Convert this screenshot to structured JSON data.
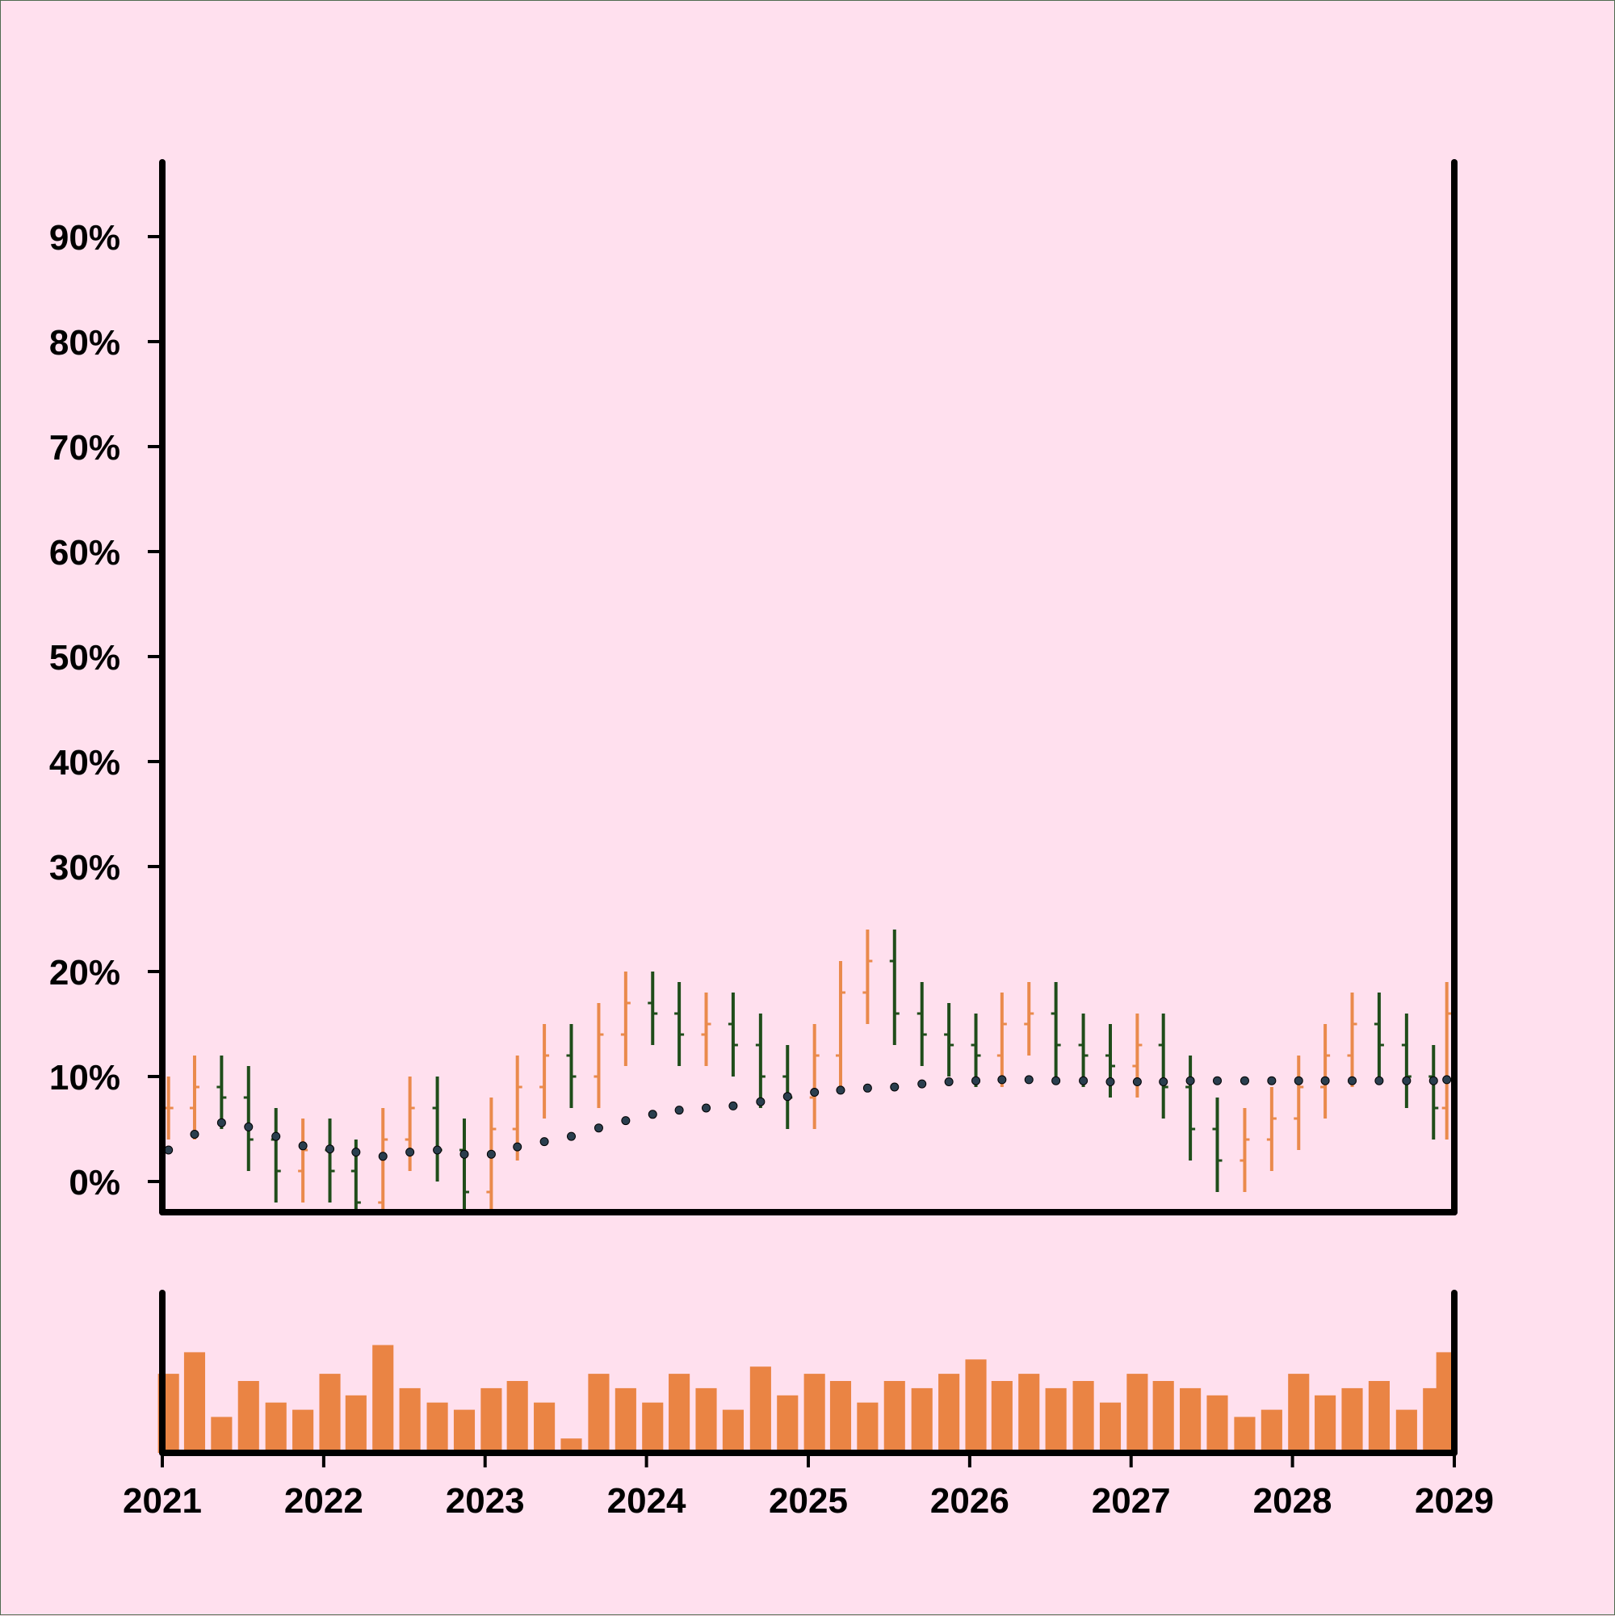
{
  "chart_data": {
    "type": "ohlc",
    "title": "",
    "xlabel": "",
    "ylabel": "",
    "x_ticks": [
      "2021",
      "2022",
      "2023",
      "2024",
      "2025",
      "2026",
      "2027",
      "2028",
      "2029"
    ],
    "y_ticks": [
      "0%",
      "10%",
      "20%",
      "30%",
      "40%",
      "50%",
      "60%",
      "70%",
      "80%",
      "90%"
    ],
    "ylim": [
      -3,
      97
    ],
    "xlim": [
      "2021-01-01",
      "2029-01-01"
    ],
    "grid": false,
    "legend": "none",
    "colors": {
      "up": "#ea8a4c",
      "down": "#1f4d1a",
      "volume": "#ea8444",
      "moving_average": "#2a3e4e",
      "background": "#ffe0ee",
      "axis": "#000000"
    },
    "series": [
      {
        "type": "ohlc",
        "note_approximate": "monthly aggregate of weekly bars, values in %",
        "dates": [
          "2021-01",
          "2021-03",
          "2021-05",
          "2021-07",
          "2021-09",
          "2021-11",
          "2022-01",
          "2022-03",
          "2022-05",
          "2022-07",
          "2022-09",
          "2022-11",
          "2023-01",
          "2023-03",
          "2023-05",
          "2023-07",
          "2023-09",
          "2023-11",
          "2024-01",
          "2024-03",
          "2024-05",
          "2024-07",
          "2024-09",
          "2024-11",
          "2025-01",
          "2025-03",
          "2025-05",
          "2025-07",
          "2025-09",
          "2025-11",
          "2026-01",
          "2026-03",
          "2026-05",
          "2026-07",
          "2026-09",
          "2026-11",
          "2027-01",
          "2027-03",
          "2027-05",
          "2027-07",
          "2027-09",
          "2027-11",
          "2028-01",
          "2028-03",
          "2028-05",
          "2028-07",
          "2028-09",
          "2028-11",
          "2028-12"
        ],
        "close": [
          7,
          9,
          8,
          4,
          1,
          3,
          1,
          -2,
          4,
          7,
          3,
          -1,
          5,
          9,
          12,
          10,
          14,
          17,
          16,
          14,
          15,
          13,
          10,
          8,
          12,
          18,
          21,
          16,
          14,
          13,
          12,
          15,
          16,
          13,
          12,
          11,
          13,
          9,
          5,
          2,
          4,
          6,
          9,
          12,
          15,
          13,
          10,
          7,
          16
        ]
      },
      {
        "type": "line",
        "marker": "dot",
        "values": [
          3.0,
          4.5,
          5.6,
          5.2,
          4.3,
          3.4,
          3.1,
          2.8,
          2.4,
          2.8,
          3.0,
          2.6,
          2.6,
          3.3,
          3.8,
          4.3,
          5.1,
          5.8,
          6.4,
          6.8,
          7.0,
          7.2,
          7.6,
          8.1,
          8.5,
          8.7,
          8.9,
          9.0,
          9.3,
          9.5,
          9.6,
          9.7,
          9.7,
          9.6,
          9.6,
          9.5,
          9.5,
          9.5,
          9.6,
          9.6,
          9.6,
          9.6,
          9.6,
          9.6,
          9.6,
          9.6,
          9.6,
          9.6,
          9.7
        ]
      },
      {
        "type": "bar",
        "panel": "volume",
        "note_approximate": "relative volume per month, 0-1",
        "values": [
          0.55,
          0.7,
          0.25,
          0.5,
          0.35,
          0.3,
          0.55,
          0.4,
          0.75,
          0.45,
          0.35,
          0.3,
          0.45,
          0.5,
          0.35,
          0.1,
          0.55,
          0.45,
          0.35,
          0.55,
          0.45,
          0.3,
          0.6,
          0.4,
          0.55,
          0.5,
          0.35,
          0.5,
          0.45,
          0.55,
          0.65,
          0.5,
          0.55,
          0.45,
          0.5,
          0.35,
          0.55,
          0.5,
          0.45,
          0.4,
          0.25,
          0.3,
          0.55,
          0.4,
          0.45,
          0.5,
          0.3,
          0.45,
          0.7
        ]
      }
    ]
  }
}
